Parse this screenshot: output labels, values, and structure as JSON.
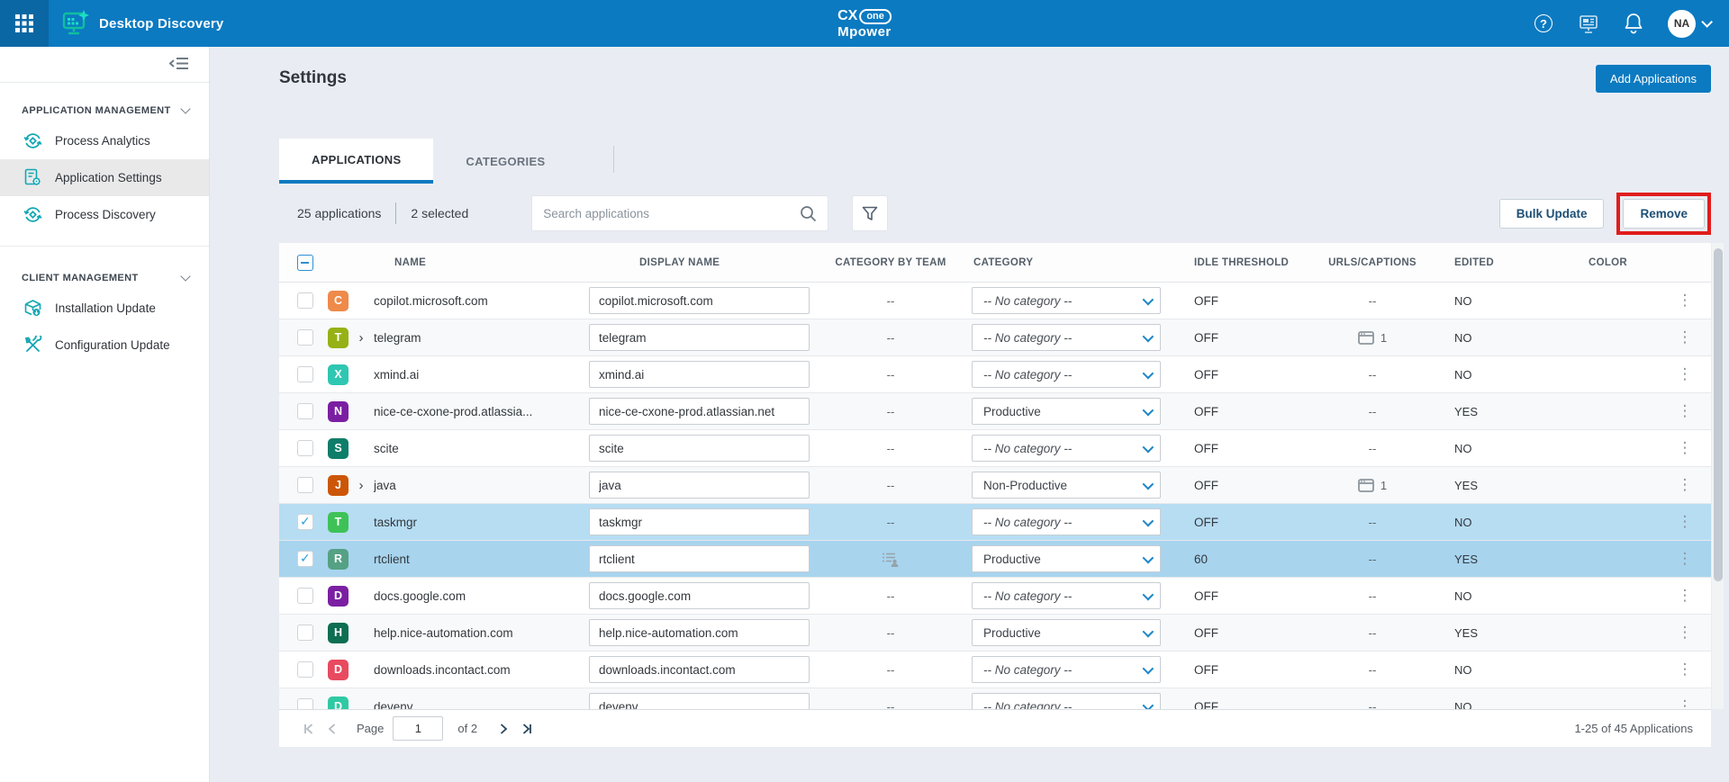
{
  "header": {
    "app_title": "Desktop Discovery",
    "brand": {
      "line1_left": "CX",
      "line1_badge": "one",
      "line2": "Mpower"
    },
    "help_glyph": "?",
    "avatar_initials": "NA"
  },
  "sidebar": {
    "sections": [
      {
        "label": "APPLICATION MANAGEMENT",
        "items": [
          {
            "label": "Process Analytics"
          },
          {
            "label": "Application Settings"
          },
          {
            "label": "Process Discovery"
          }
        ]
      },
      {
        "label": "CLIENT MANAGEMENT",
        "items": [
          {
            "label": "Installation Update"
          },
          {
            "label": "Configuration Update"
          }
        ]
      }
    ]
  },
  "page": {
    "title": "Settings",
    "add_button_label": "Add Applications",
    "tabs": [
      {
        "label": "APPLICATIONS"
      },
      {
        "label": "CATEGORIES"
      }
    ]
  },
  "toolbar": {
    "count_text": "25 applications",
    "selected_text": "2 selected",
    "search_placeholder": "Search applications",
    "bulk_update_label": "Bulk Update",
    "remove_label": "Remove"
  },
  "table": {
    "headers": {
      "name": "NAME",
      "display_name": "DISPLAY NAME",
      "category_by_team": "CATEGORY BY TEAM",
      "category": "CATEGORY",
      "idle_threshold": "IDLE THRESHOLD",
      "urls_captions": "URLS/CAPTIONS",
      "edited": "EDITED",
      "color": "COLOR"
    },
    "rows": [
      {
        "letter": "C",
        "icon_color": "#ee8a4a",
        "name": "copilot.microsoft.com",
        "display_name": "copilot.microsoft.com",
        "expandable": false,
        "selected": false,
        "category_by_team": "--",
        "team_icon": false,
        "category": "-- No category --",
        "category_is_placeholder": true,
        "idle_threshold": "OFF",
        "urls_text": "--",
        "urls_badge": null,
        "edited": "NO",
        "color_dot": "#f09a62"
      },
      {
        "letter": "T",
        "icon_color": "#96b115",
        "name": "telegram",
        "display_name": "telegram",
        "expandable": true,
        "selected": false,
        "category_by_team": "--",
        "team_icon": false,
        "category": "-- No category --",
        "category_is_placeholder": true,
        "idle_threshold": "OFF",
        "urls_text": "",
        "urls_badge": "1",
        "edited": "NO",
        "color_dot": "#a8c41b"
      },
      {
        "letter": "X",
        "icon_color": "#2fc7b2",
        "name": "xmind.ai",
        "display_name": "xmind.ai",
        "expandable": false,
        "selected": false,
        "category_by_team": "--",
        "team_icon": false,
        "category": "-- No category --",
        "category_is_placeholder": true,
        "idle_threshold": "OFF",
        "urls_text": "--",
        "urls_badge": null,
        "edited": "NO",
        "color_dot": "#3be3cc"
      },
      {
        "letter": "N",
        "icon_color": "#7b1fa2",
        "name": "nice-ce-cxone-prod.atlassia...",
        "display_name": "nice-ce-cxone-prod.atlassian.net",
        "expandable": false,
        "selected": false,
        "category_by_team": "--",
        "team_icon": false,
        "category": "Productive",
        "category_is_placeholder": false,
        "idle_threshold": "OFF",
        "urls_text": "--",
        "urls_badge": null,
        "edited": "YES",
        "color_dot": "#9c10d6"
      },
      {
        "letter": "S",
        "icon_color": "#0e7d69",
        "name": "scite",
        "display_name": "scite",
        "expandable": false,
        "selected": false,
        "category_by_team": "--",
        "team_icon": false,
        "category": "-- No category --",
        "category_is_placeholder": true,
        "idle_threshold": "OFF",
        "urls_text": "--",
        "urls_badge": null,
        "edited": "NO",
        "color_dot": "#1b9084"
      },
      {
        "letter": "J",
        "icon_color": "#cc5607",
        "name": "java",
        "display_name": "java",
        "expandable": true,
        "selected": false,
        "category_by_team": "--",
        "team_icon": false,
        "category": "Non-Productive",
        "category_is_placeholder": false,
        "idle_threshold": "OFF",
        "urls_text": "",
        "urls_badge": "1",
        "edited": "YES",
        "color_dot": "#f66d00"
      },
      {
        "letter": "T",
        "icon_color": "#3ec257",
        "name": "taskmgr",
        "display_name": "taskmgr",
        "expandable": false,
        "selected": true,
        "category_by_team": "--",
        "team_icon": false,
        "category": "-- No category --",
        "category_is_placeholder": true,
        "idle_threshold": "OFF",
        "urls_text": "--",
        "urls_badge": null,
        "edited": "NO",
        "color_dot": "#58e25f"
      },
      {
        "letter": "R",
        "icon_color": "#55a184",
        "name": "rtclient",
        "display_name": "rtclient",
        "expandable": false,
        "selected": true,
        "category_by_team": "",
        "team_icon": true,
        "category": "Productive",
        "category_is_placeholder": false,
        "idle_threshold": "60",
        "urls_text": "--",
        "urls_badge": null,
        "edited": "YES",
        "color_dot": "#6cab88"
      },
      {
        "letter": "D",
        "icon_color": "#7b1fa2",
        "name": "docs.google.com",
        "display_name": "docs.google.com",
        "expandable": false,
        "selected": false,
        "category_by_team": "--",
        "team_icon": false,
        "category": "-- No category --",
        "category_is_placeholder": true,
        "idle_threshold": "OFF",
        "urls_text": "--",
        "urls_badge": null,
        "edited": "NO",
        "color_dot": "#9c10d6"
      },
      {
        "letter": "H",
        "icon_color": "#0d6e52",
        "name": "help.nice-automation.com",
        "display_name": "help.nice-automation.com",
        "expandable": false,
        "selected": false,
        "category_by_team": "--",
        "team_icon": false,
        "category": "Productive",
        "category_is_placeholder": false,
        "idle_threshold": "OFF",
        "urls_text": "--",
        "urls_badge": null,
        "edited": "YES",
        "color_dot": "#1a8a74"
      },
      {
        "letter": "D",
        "icon_color": "#e84a5f",
        "name": "downloads.incontact.com",
        "display_name": "downloads.incontact.com",
        "expandable": false,
        "selected": false,
        "category_by_team": "--",
        "team_icon": false,
        "category": "-- No category --",
        "category_is_placeholder": true,
        "idle_threshold": "OFF",
        "urls_text": "--",
        "urls_badge": null,
        "edited": "NO",
        "color_dot": "#f2536e"
      },
      {
        "letter": "D",
        "icon_color": "#2fc9a4",
        "name": "devenv",
        "display_name": "devenv",
        "expandable": false,
        "selected": false,
        "category_by_team": "--",
        "team_icon": false,
        "category": "-- No category --",
        "category_is_placeholder": true,
        "idle_threshold": "OFF",
        "urls_text": "--",
        "urls_badge": null,
        "edited": "NO",
        "color_dot": "#38e2c2"
      }
    ]
  },
  "pagination": {
    "page_label": "Page",
    "page_value": "1",
    "of_label": "of 2",
    "range_text": "1-25 of 45 Applications"
  },
  "colors": {
    "accent_blue": "#0b7ac1",
    "sidebar_icon_teal": "#12a7b4",
    "selected_row": "#b7ddf3",
    "remove_highlight": "#e11d1d"
  }
}
